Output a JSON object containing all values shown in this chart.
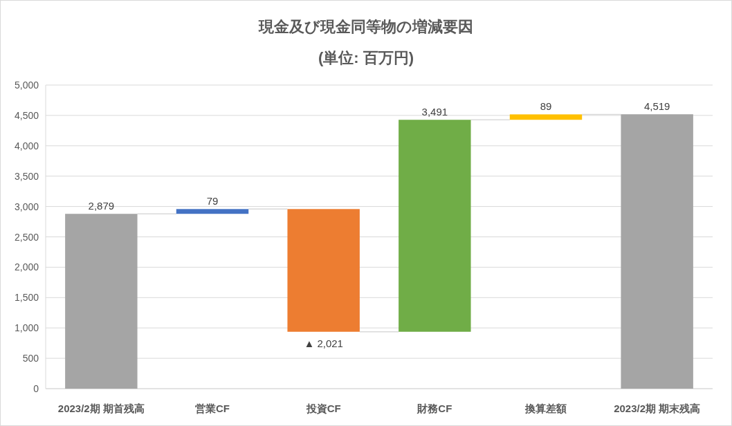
{
  "chart_data": {
    "type": "bar",
    "title": "現金及び現金同等物の増減要因",
    "subtitle": "(単位: 百万円)",
    "categories": [
      "2023/2期 期首残高",
      "営業CF",
      "投資CF",
      "財務CF",
      "換算差額",
      "2023/2期 期末残高"
    ],
    "values": [
      2879,
      79,
      -2021,
      3491,
      89,
      4519
    ],
    "base": [
      0,
      2879,
      2958,
      937,
      4428,
      0
    ],
    "colors": [
      "#a5a5a5",
      "#4472c4",
      "#ed7d31",
      "#70ad47",
      "#ffc000",
      "#a5a5a5"
    ],
    "value_labels": [
      "2,879",
      "79",
      "▲ 2,021",
      "3,491",
      "89",
      "4,519"
    ],
    "ylim": [
      0,
      5000
    ],
    "yticks": [
      {
        "value": 0,
        "label": "0"
      },
      {
        "value": 500,
        "label": "500"
      },
      {
        "value": 1000,
        "label": "1,000"
      },
      {
        "value": 1500,
        "label": "1,500"
      },
      {
        "value": 2000,
        "label": "2,000"
      },
      {
        "value": 2500,
        "label": "2,500"
      },
      {
        "value": 3000,
        "label": "3,000"
      },
      {
        "value": 3500,
        "label": "3,500"
      },
      {
        "value": 4000,
        "label": "4,000"
      },
      {
        "value": 4500,
        "label": "4,500"
      },
      {
        "value": 5000,
        "label": "5,000"
      }
    ],
    "grid": "y"
  }
}
